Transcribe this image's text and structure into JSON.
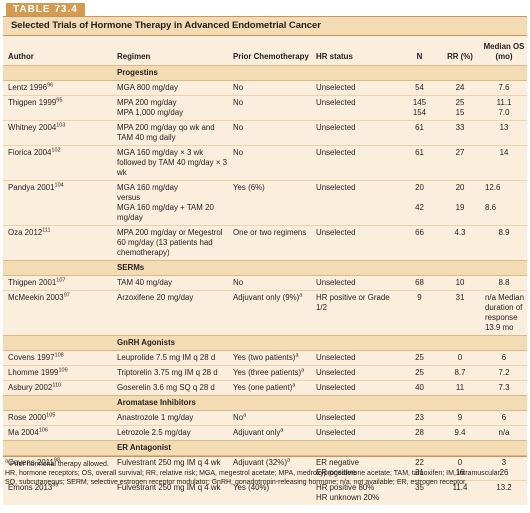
{
  "table_tag": "TABLE 73.4",
  "title": "Selected Trials of Hormone Therapy in Advanced Endometrial Cancer",
  "columns": {
    "author": "Author",
    "regimen": "Regimen",
    "prior": "Prior Chemotherapy",
    "hr": "HR status",
    "n": "N",
    "rr": "RR (%)",
    "os": "Median OS (mo)"
  },
  "sections": [
    {
      "name": "Progestins",
      "rows": [
        {
          "author": "Lentz 1996",
          "ref": "96",
          "regimen": "MGA 800 mg/day",
          "prior": "No",
          "prior_sup": "",
          "hr": "Unselected",
          "n": "54",
          "rr": "24",
          "os": "7.6"
        },
        {
          "author": "Thigpen 1999",
          "ref": "95",
          "regimen": "MPA 200 mg/day\nMPA 1,000 mg/day",
          "prior": "No",
          "prior_sup": "",
          "hr": "Unselected",
          "n": "145\n154",
          "rr": "25\n15",
          "os": "11.1\n7.0"
        },
        {
          "author": "Whitney 2004",
          "ref": "103",
          "regimen": "MPA 200 mg/day qo wk and TAM 40 mg daily",
          "prior": "No",
          "prior_sup": "",
          "hr": "Unselected",
          "n": "61",
          "rr": "33",
          "os": "13"
        },
        {
          "author": "Fiorica 2004",
          "ref": "102",
          "regimen": "MGA 160 mg/day × 3 wk followed by TAM 40 mg/day × 3 wk",
          "prior": "No",
          "prior_sup": "",
          "hr": "Unselected",
          "n": "61",
          "rr": "27",
          "os": "14"
        },
        {
          "author": "Pandya 2001",
          "ref": "104",
          "regimen": "MGA 160 mg/day\nversus\nMGA 160 mg/day + TAM 20 mg/day",
          "prior": "Yes (6%)",
          "prior_sup": "",
          "hr": "Unselected",
          "n": "20\n\n42",
          "rr": "20\n\n19",
          "os": "12.6\n\n8.6"
        },
        {
          "author": "Oza 2012",
          "ref": "111",
          "regimen": "MPA 200 mg/day or Megestrol 60 mg/day (13 patients had chemotherapy)",
          "prior": "One or two regimens",
          "prior_sup": "",
          "hr": "Unselected",
          "n": "66",
          "rr": "4.3",
          "os": "8.9"
        }
      ]
    },
    {
      "name": "SERMs",
      "rows": [
        {
          "author": "Thigpen 2001",
          "ref": "107",
          "regimen": "TAM 40 mg/day",
          "prior": "No",
          "prior_sup": "",
          "hr": "Unselected",
          "n": "68",
          "rr": "10",
          "os": "8.8"
        },
        {
          "author": "McMeekin 2003",
          "ref": "97",
          "regimen": "Arzoxifene 20 mg/day",
          "prior": "Adjuvant only (9%)",
          "prior_sup": "a",
          "hr": "HR positive or Grade 1/2",
          "n": "9",
          "rr": "31",
          "os": "n/a Median duration of response 13.9 mo"
        }
      ]
    },
    {
      "name": "GnRH Agonists",
      "rows": [
        {
          "author": "Covens 1997",
          "ref": "108",
          "regimen": "Leuprolide 7.5 mg IM q 28 d",
          "prior": "Yes (two patients)",
          "prior_sup": "a",
          "hr": "Unselected",
          "n": "25",
          "rr": "0",
          "os": "6"
        },
        {
          "author": "Lhomme 1999",
          "ref": "109",
          "regimen": "Triptorelin 3.75 mg IM q 28 d",
          "prior": "Yes (three patients)",
          "prior_sup": "a",
          "hr": "Unselected",
          "n": "25",
          "rr": "8.7",
          "os": "7.2"
        },
        {
          "author": "Asbury 2002",
          "ref": "110",
          "regimen": "Goserelin 3.6 mg SQ q 28 d",
          "prior": "Yes (one patient)",
          "prior_sup": "a",
          "hr": "Unselected",
          "n": "40",
          "rr": "11",
          "os": "7.3"
        }
      ]
    },
    {
      "name": "Aromatase Inhibitors",
      "rows": [
        {
          "author": "Rose 2000",
          "ref": "105",
          "regimen": "Anastrozole 1 mg/day",
          "prior": "No",
          "prior_sup": "a",
          "hr": "Unselected",
          "n": "23",
          "rr": "9",
          "os": "6"
        },
        {
          "author": "Ma 2004",
          "ref": "106",
          "regimen": "Letrozole 2.5 mg/day",
          "prior": "Adjuvant only",
          "prior_sup": "a",
          "hr": "Unselected",
          "n": "28",
          "rr": "9.4",
          "os": "n/a"
        }
      ]
    },
    {
      "name": "ER Antagonist",
      "rows": [
        {
          "author": "Covens 2011",
          "ref": "98",
          "regimen": "Fulvestrant 250 mg IM q 4 wk",
          "prior": "Adjuvant (32%)",
          "prior_sup": "a",
          "hr": "ER negative\nER positive",
          "n": "22\n31",
          "rr": "0\n16",
          "os": "3\n26"
        },
        {
          "author": "Emons 2013",
          "ref": "99",
          "regimen": "Fulvestrant 250 mg IM q 4 wk",
          "prior": "Yes (40%)",
          "prior_sup": "",
          "hr": "HR positive 80%\nHR unknown 20%",
          "n": "35",
          "rr": "11.4",
          "os": "13.2"
        }
      ]
    }
  ],
  "footnotes": [
    "a Prior hormonal therapy allowed.",
    "HR, hormone receptors; OS, overall survival; RR, relative risk; MGA, megestrol acetate; MPA, medroxyprogesterone acetate; TAM, tamoxifen; IM, intramuscular;",
    "SQ, subcutaneous; SERM, selective estrogen receptor modulator; GnRH, gonadotropin-releasing hormone; n/a, not available; ER, estrogen receptor."
  ]
}
